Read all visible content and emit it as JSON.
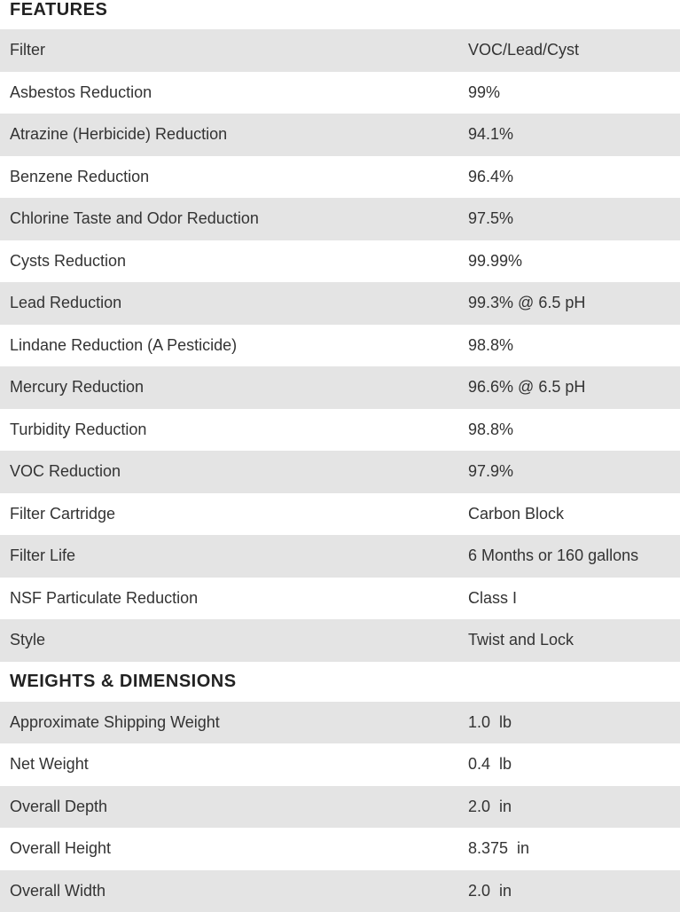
{
  "sections": [
    {
      "title": "FEATURES",
      "rows": [
        {
          "label": "Filter",
          "value": "VOC/Lead/Cyst"
        },
        {
          "label": "Asbestos Reduction",
          "value": "99%"
        },
        {
          "label": "Atrazine (Herbicide) Reduction",
          "value": "94.1%"
        },
        {
          "label": "Benzene Reduction",
          "value": "96.4%"
        },
        {
          "label": "Chlorine Taste and Odor Reduction",
          "value": "97.5%"
        },
        {
          "label": "Cysts Reduction",
          "value": "99.99%"
        },
        {
          "label": "Lead Reduction",
          "value": "99.3% @ 6.5 pH"
        },
        {
          "label": "Lindane Reduction (A Pesticide)",
          "value": "98.8%"
        },
        {
          "label": "Mercury Reduction",
          "value": "96.6% @ 6.5 pH"
        },
        {
          "label": "Turbidity Reduction",
          "value": "98.8%"
        },
        {
          "label": "VOC Reduction",
          "value": "97.9%"
        },
        {
          "label": "Filter Cartridge",
          "value": "Carbon Block"
        },
        {
          "label": "Filter Life",
          "value": "6 Months or 160 gallons"
        },
        {
          "label": "NSF Particulate Reduction",
          "value": "Class I"
        },
        {
          "label": "Style",
          "value": "Twist and Lock"
        }
      ]
    },
    {
      "title": "WEIGHTS & DIMENSIONS",
      "rows": [
        {
          "label": "Approximate Shipping Weight",
          "value": "1.0  lb"
        },
        {
          "label": "Net Weight",
          "value": "0.4  lb"
        },
        {
          "label": "Overall Depth",
          "value": "2.0  in"
        },
        {
          "label": "Overall Height",
          "value": "8.375  in"
        },
        {
          "label": "Overall Width",
          "value": "2.0  in"
        }
      ]
    }
  ]
}
